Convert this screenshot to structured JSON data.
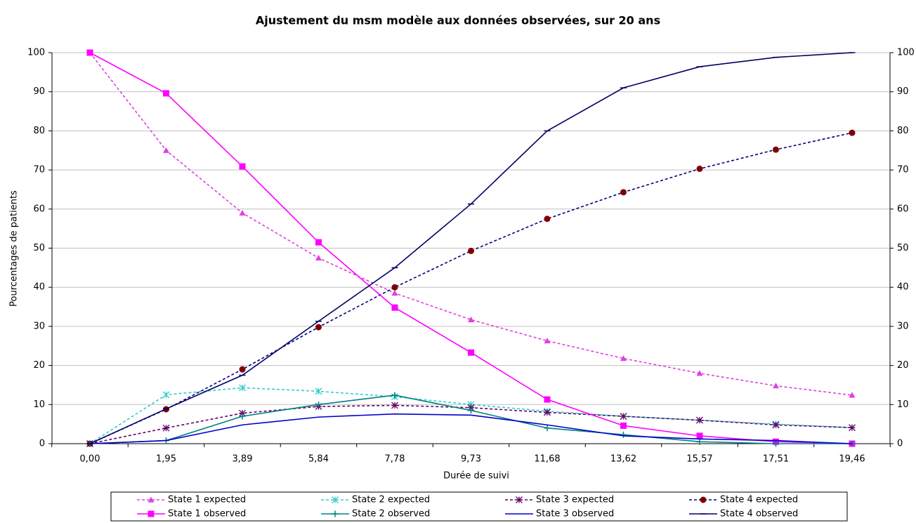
{
  "chart_data": {
    "type": "line",
    "title": "Ajustement du msm modèle aux données observées, sur 20 ans",
    "x_label": "Durée de suivi",
    "y_label": "Pourcentages de patients",
    "categories": [
      "0,00",
      "1,95",
      "3,89",
      "5,84",
      "7,78",
      "9,73",
      "11,68",
      "13,62",
      "15,57",
      "17,51",
      "19,46"
    ],
    "ylim": [
      0,
      100
    ],
    "yticks": [
      0,
      10,
      20,
      30,
      40,
      50,
      60,
      70,
      80,
      90,
      100
    ],
    "y2lim": [
      0,
      100
    ],
    "y2ticks": [
      0,
      10,
      20,
      30,
      40,
      50,
      60,
      70,
      80,
      90,
      100
    ],
    "grid": true,
    "legend": "bottom",
    "series": [
      {
        "name": "State 1 expected",
        "color": "#e040e0",
        "dashed": true,
        "marker": "triangle",
        "values": [
          100,
          75,
          59,
          47.5,
          38.5,
          31.7,
          26.3,
          21.8,
          18,
          14.8,
          12.4
        ]
      },
      {
        "name": "State 2 expected",
        "color": "#33cccc",
        "dashed": true,
        "marker": "asterisk",
        "values": [
          0,
          12.5,
          14.3,
          13.4,
          12,
          10,
          8.3,
          7,
          6,
          5,
          4.1
        ]
      },
      {
        "name": "State 3 expected",
        "color": "#660066",
        "dashed": true,
        "marker": "star",
        "values": [
          0,
          4,
          7.8,
          9.5,
          9.8,
          9.2,
          8,
          7,
          6,
          4.8,
          4.1
        ]
      },
      {
        "name": "State 4 expected",
        "color": "#000080",
        "marker_color": "#800000",
        "dashed": true,
        "marker": "circle",
        "values": [
          0,
          8.8,
          19,
          29.8,
          40,
          49.3,
          57.5,
          64.3,
          70.3,
          75.2,
          79.5
        ]
      },
      {
        "name": "State 1 observed",
        "color": "#ff00ff",
        "dashed": false,
        "marker": "square",
        "values": [
          100,
          89.6,
          70.9,
          51.5,
          34.8,
          23.3,
          11.3,
          4.6,
          2,
          0.5,
          0
        ]
      },
      {
        "name": "State 2 observed",
        "color": "#008080",
        "dashed": false,
        "marker": "plus",
        "values": [
          0,
          0.8,
          7,
          10,
          12.4,
          8.5,
          4,
          2.3,
          0.5,
          0,
          0
        ]
      },
      {
        "name": "State 3 observed",
        "color": "#0000cc",
        "dashed": false,
        "marker": "none",
        "values": [
          0,
          0.8,
          4.8,
          6.8,
          7.6,
          7.3,
          4.8,
          2,
          1.2,
          0.8,
          0
        ]
      },
      {
        "name": "State 4 observed",
        "color": "#000066",
        "dashed": false,
        "marker": "dash",
        "values": [
          0,
          8.9,
          17.5,
          31.3,
          45,
          61.3,
          80,
          91,
          96.4,
          98.8,
          100
        ]
      }
    ]
  }
}
